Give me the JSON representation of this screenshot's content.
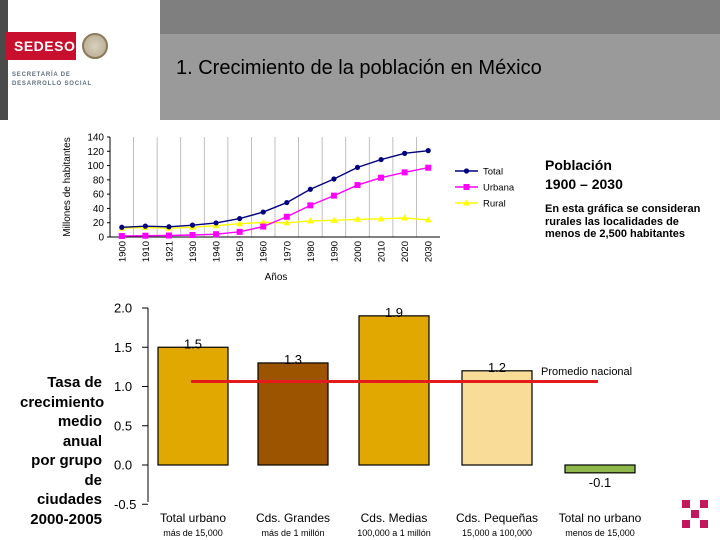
{
  "header": {
    "logo_text": "SEDESOL",
    "logo_subtext": [
      "SECRETARÍA DE",
      "DESARROLLO SOCIAL"
    ],
    "title": "1. Crecimiento de la población en México"
  },
  "side_panel": {
    "title_lines": [
      "Población",
      "1900 – 2030"
    ],
    "note": "En esta gráfica se consideran rurales las localidades de menos de 2,500 habitantes"
  },
  "rate_label_lines": [
    "Tasa de",
    "crecimiento",
    "medio anual",
    "por grupo de",
    "ciudades",
    "2000-2005"
  ],
  "colors": {
    "total": "#000080",
    "urbana": "#ff00ff",
    "rural": "#ffff00",
    "nacional_line": "#e31b1b",
    "brand_red": "#c8102e",
    "deco_magenta": "#c2185b"
  },
  "chart_data": [
    {
      "type": "line",
      "ylabel": "Millones de habitantes",
      "xlabel": "Años",
      "x": [
        "1900",
        "1910",
        "1921",
        "1930",
        "1940",
        "1950",
        "1960",
        "1970",
        "1980",
        "1990",
        "2000",
        "2010",
        "2020",
        "2030"
      ],
      "ylim": [
        0,
        140
      ],
      "yticks": [
        0,
        20,
        40,
        60,
        80,
        100,
        120,
        140
      ],
      "grid": "vertical",
      "legend_position": "right",
      "series": [
        {
          "name": "Total",
          "values": [
            13.6,
            15.2,
            14.3,
            16.6,
            19.7,
            25.8,
            34.9,
            48.2,
            66.8,
            81.2,
            97.5,
            108.4,
            117.1,
            120.9
          ]
        },
        {
          "name": "Urbana",
          "values": [
            1.4,
            1.8,
            2.1,
            2.8,
            3.9,
            7.2,
            14.6,
            28.3,
            44.3,
            57.9,
            72.7,
            83.0,
            90.5,
            97.0
          ]
        },
        {
          "name": "Rural",
          "values": [
            12.2,
            13.4,
            12.2,
            13.8,
            15.8,
            18.6,
            20.3,
            19.9,
            22.5,
            23.3,
            24.8,
            25.4,
            26.6,
            23.9
          ]
        }
      ]
    },
    {
      "type": "bar",
      "ylim": [
        -0.5,
        2.0
      ],
      "yticks": [
        "2.0",
        "1.5",
        "1.0",
        "0.5",
        "0.0",
        "-0.5"
      ],
      "categories": [
        "Total urbano",
        "Cds. Grandes",
        "Cds. Medias",
        "Cds. Pequeñas",
        "Total no urbano"
      ],
      "subcategories": [
        "más de 15,000",
        "más de 1 millón",
        "100,000 a 1 millón",
        "15,000 a 100,000",
        "menos de 15,000"
      ],
      "values": [
        1.5,
        1.3,
        1.9,
        1.2,
        -0.1
      ],
      "value_labels": [
        "1.5",
        "1.3",
        "1.9",
        "1.2",
        "-0.1"
      ],
      "bar_colors": [
        "#e0a800",
        "#9c5400",
        "#e0a800",
        "#f8dc98",
        "#8fb84c"
      ],
      "reference_line": {
        "label": "Promedio nacional",
        "value": 1.0
      }
    }
  ]
}
